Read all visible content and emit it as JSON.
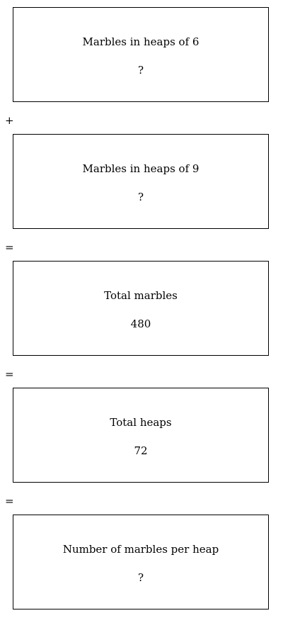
{
  "boxes": [
    {
      "label": "Marbles in heaps of 6",
      "value": "?"
    },
    {
      "label": "Marbles in heaps of 9",
      "value": "?"
    },
    {
      "label": "Total marbles",
      "value": "480"
    },
    {
      "label": "Total heaps",
      "value": "72"
    },
    {
      "label": "Number of marbles per heap",
      "value": "?"
    }
  ],
  "operators": [
    "+",
    "=",
    "=",
    "="
  ]
}
